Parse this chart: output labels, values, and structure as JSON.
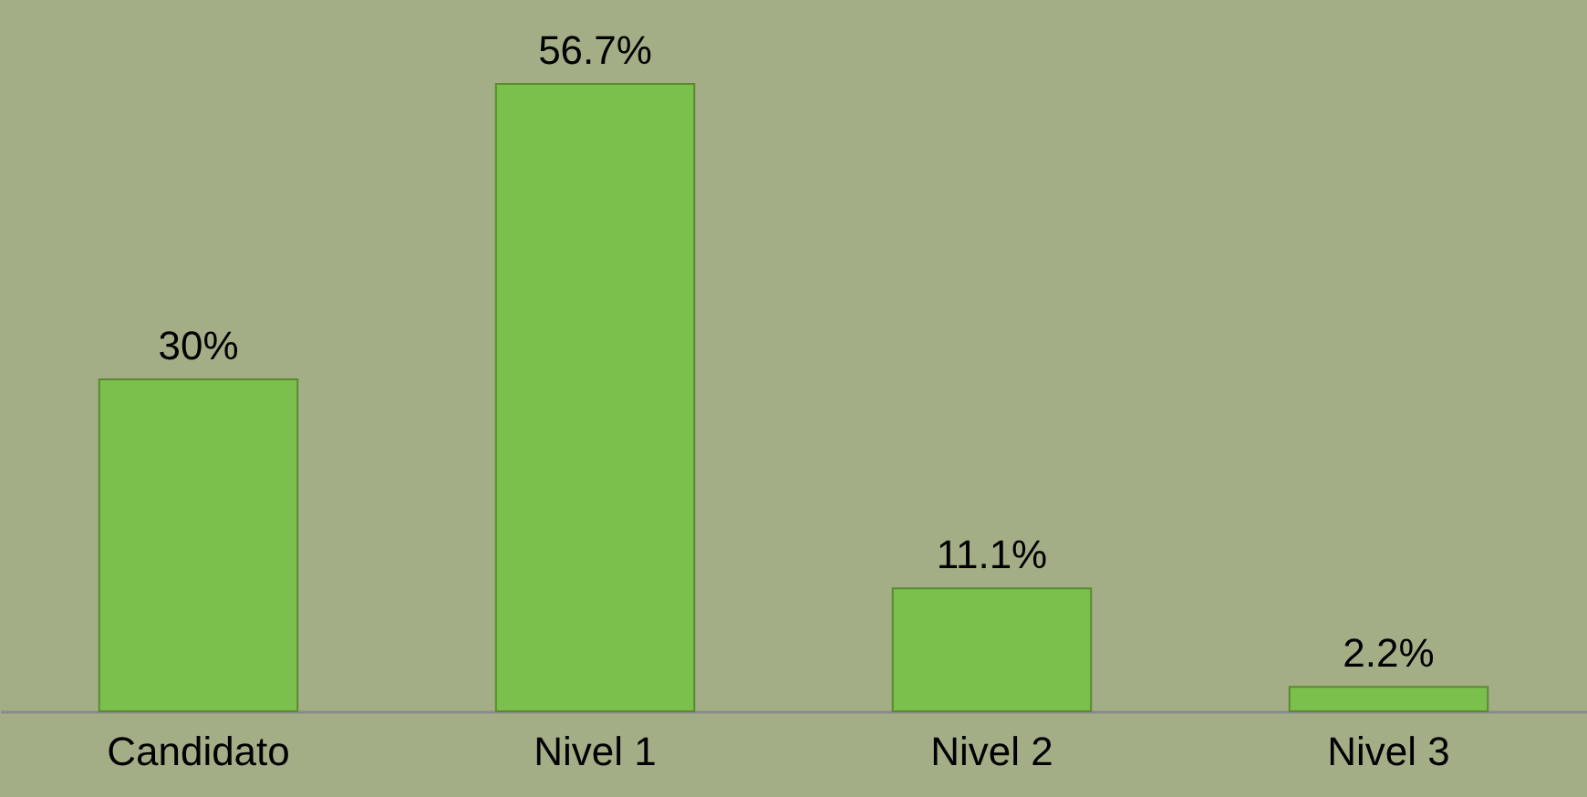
{
  "chart_data": {
    "type": "bar",
    "categories": [
      "Candidato",
      "Nivel 1",
      "Nivel 2",
      "Nivel 3"
    ],
    "values": [
      30,
      56.7,
      11.1,
      2.2
    ],
    "value_labels": [
      "30%",
      "56.7%",
      "11.1%",
      "2.2%"
    ],
    "color": "#7bbf4c"
  }
}
